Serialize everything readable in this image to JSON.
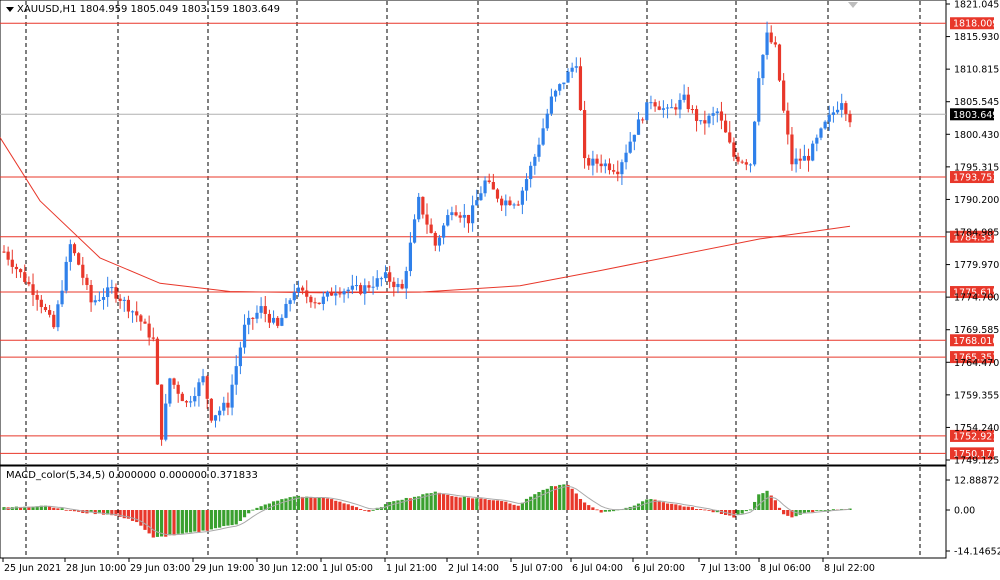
{
  "window": {
    "symbol_title": "XAUUSD,H1  1804.959 1805.049 1803.159 1803.649",
    "macd_title": "MACD_color(5,34,5) 0.000000 0.000000 0.371833"
  },
  "colors": {
    "bull": "#2f80ea",
    "bear": "#e8372a",
    "level_line": "#e8372a",
    "ma_line": "#e8372a",
    "macd_pos": "#3aa02f",
    "macd_neg": "#e8372a",
    "signal_line": "#a9a9a9",
    "price_tag_bg": "#000000"
  },
  "price_scale": {
    "labels": [
      "1821.045",
      "1815.930",
      "1810.815",
      "1805.545",
      "1800.430",
      "1795.315",
      "1790.200",
      "1784.985",
      "1779.970",
      "1774.700",
      "1769.585",
      "1764.470",
      "1759.355",
      "1754.240",
      "1749.125"
    ],
    "current_price": "1803.649"
  },
  "levels": [
    {
      "value": 1818.009,
      "label": "1818.009"
    },
    {
      "value": 1793.753,
      "label": "1793.753"
    },
    {
      "value": 1784.333,
      "label": "1784.333"
    },
    {
      "value": 1775.615,
      "label": "1775.615"
    },
    {
      "value": 1768.01,
      "label": "1768.010"
    },
    {
      "value": 1765.357,
      "label": "1765.357"
    },
    {
      "value": 1752.921,
      "label": "1752.921"
    },
    {
      "value": 1750.171,
      "label": "1750.171"
    }
  ],
  "macd_scale": {
    "labels": [
      "12.888722",
      "0.00",
      "-14.146525"
    ]
  },
  "time_axis": {
    "labels": [
      "25 Jun 2021",
      "28 Jun 10:00",
      "29 Jun 03:00",
      "29 Jun 19:00",
      "30 Jun 12:00",
      "1 Jul 05:00",
      "1 Jul 21:00",
      "2 Jul 14:00",
      "5 Jul 07:00",
      "6 Jul 04:00",
      "6 Jul 20:00",
      "7 Jul 13:00",
      "8 Jul 06:00",
      "8 Jul 22:00"
    ]
  },
  "chart_data": {
    "type": "candlestick",
    "symbol": "XAUUSD",
    "timeframe": "H1",
    "ylim": [
      1749.125,
      1821.045
    ],
    "path_keypoints": [
      [
        0,
        1782
      ],
      [
        8,
        1775
      ],
      [
        12,
        1770
      ],
      [
        16,
        1783
      ],
      [
        18,
        1780
      ],
      [
        21,
        1774
      ],
      [
        26,
        1776
      ],
      [
        32,
        1772
      ],
      [
        36,
        1768
      ],
      [
        38,
        1753
      ],
      [
        40,
        1762
      ],
      [
        44,
        1758
      ],
      [
        48,
        1762
      ],
      [
        50,
        1756
      ],
      [
        54,
        1758
      ],
      [
        58,
        1770
      ],
      [
        62,
        1773
      ],
      [
        66,
        1770
      ],
      [
        70,
        1776
      ],
      [
        76,
        1774
      ],
      [
        80,
        1776
      ],
      [
        86,
        1776
      ],
      [
        92,
        1778
      ],
      [
        96,
        1776
      ],
      [
        100,
        1790
      ],
      [
        104,
        1783
      ],
      [
        108,
        1789
      ],
      [
        112,
        1787
      ],
      [
        116,
        1793
      ],
      [
        120,
        1790
      ],
      [
        124,
        1790
      ],
      [
        128,
        1797
      ],
      [
        132,
        1806
      ],
      [
        136,
        1810
      ],
      [
        138,
        1812
      ],
      [
        140,
        1796
      ],
      [
        144,
        1796
      ],
      [
        148,
        1795
      ],
      [
        152,
        1801
      ],
      [
        156,
        1806
      ],
      [
        160,
        1804
      ],
      [
        164,
        1806
      ],
      [
        168,
        1802
      ],
      [
        172,
        1804
      ],
      [
        176,
        1797
      ],
      [
        180,
        1796
      ],
      [
        182,
        1810
      ],
      [
        184,
        1816
      ],
      [
        186,
        1814
      ],
      [
        188,
        1804
      ],
      [
        190,
        1796
      ],
      [
        194,
        1797
      ],
      [
        198,
        1802
      ],
      [
        200,
        1804
      ],
      [
        202,
        1806
      ],
      [
        204,
        1803
      ]
    ],
    "macd_keypoints": [
      [
        0,
        1
      ],
      [
        10,
        2
      ],
      [
        18,
        -1
      ],
      [
        26,
        -2
      ],
      [
        32,
        -5
      ],
      [
        36,
        -12
      ],
      [
        40,
        -11
      ],
      [
        48,
        -9
      ],
      [
        56,
        -6
      ],
      [
        60,
        0
      ],
      [
        64,
        3
      ],
      [
        70,
        6
      ],
      [
        78,
        5
      ],
      [
        84,
        2
      ],
      [
        88,
        -1
      ],
      [
        94,
        4
      ],
      [
        100,
        6
      ],
      [
        104,
        8
      ],
      [
        108,
        6
      ],
      [
        114,
        5
      ],
      [
        120,
        4
      ],
      [
        124,
        2
      ],
      [
        128,
        7
      ],
      [
        132,
        10
      ],
      [
        136,
        11
      ],
      [
        140,
        3
      ],
      [
        144,
        -1
      ],
      [
        148,
        0
      ],
      [
        152,
        2
      ],
      [
        156,
        5
      ],
      [
        160,
        3
      ],
      [
        166,
        1
      ],
      [
        172,
        -1
      ],
      [
        176,
        -3
      ],
      [
        180,
        0
      ],
      [
        182,
        7
      ],
      [
        184,
        8
      ],
      [
        186,
        4
      ],
      [
        188,
        -2
      ],
      [
        190,
        -3
      ],
      [
        194,
        -1
      ],
      [
        198,
        0
      ],
      [
        204,
        0.37
      ]
    ]
  }
}
